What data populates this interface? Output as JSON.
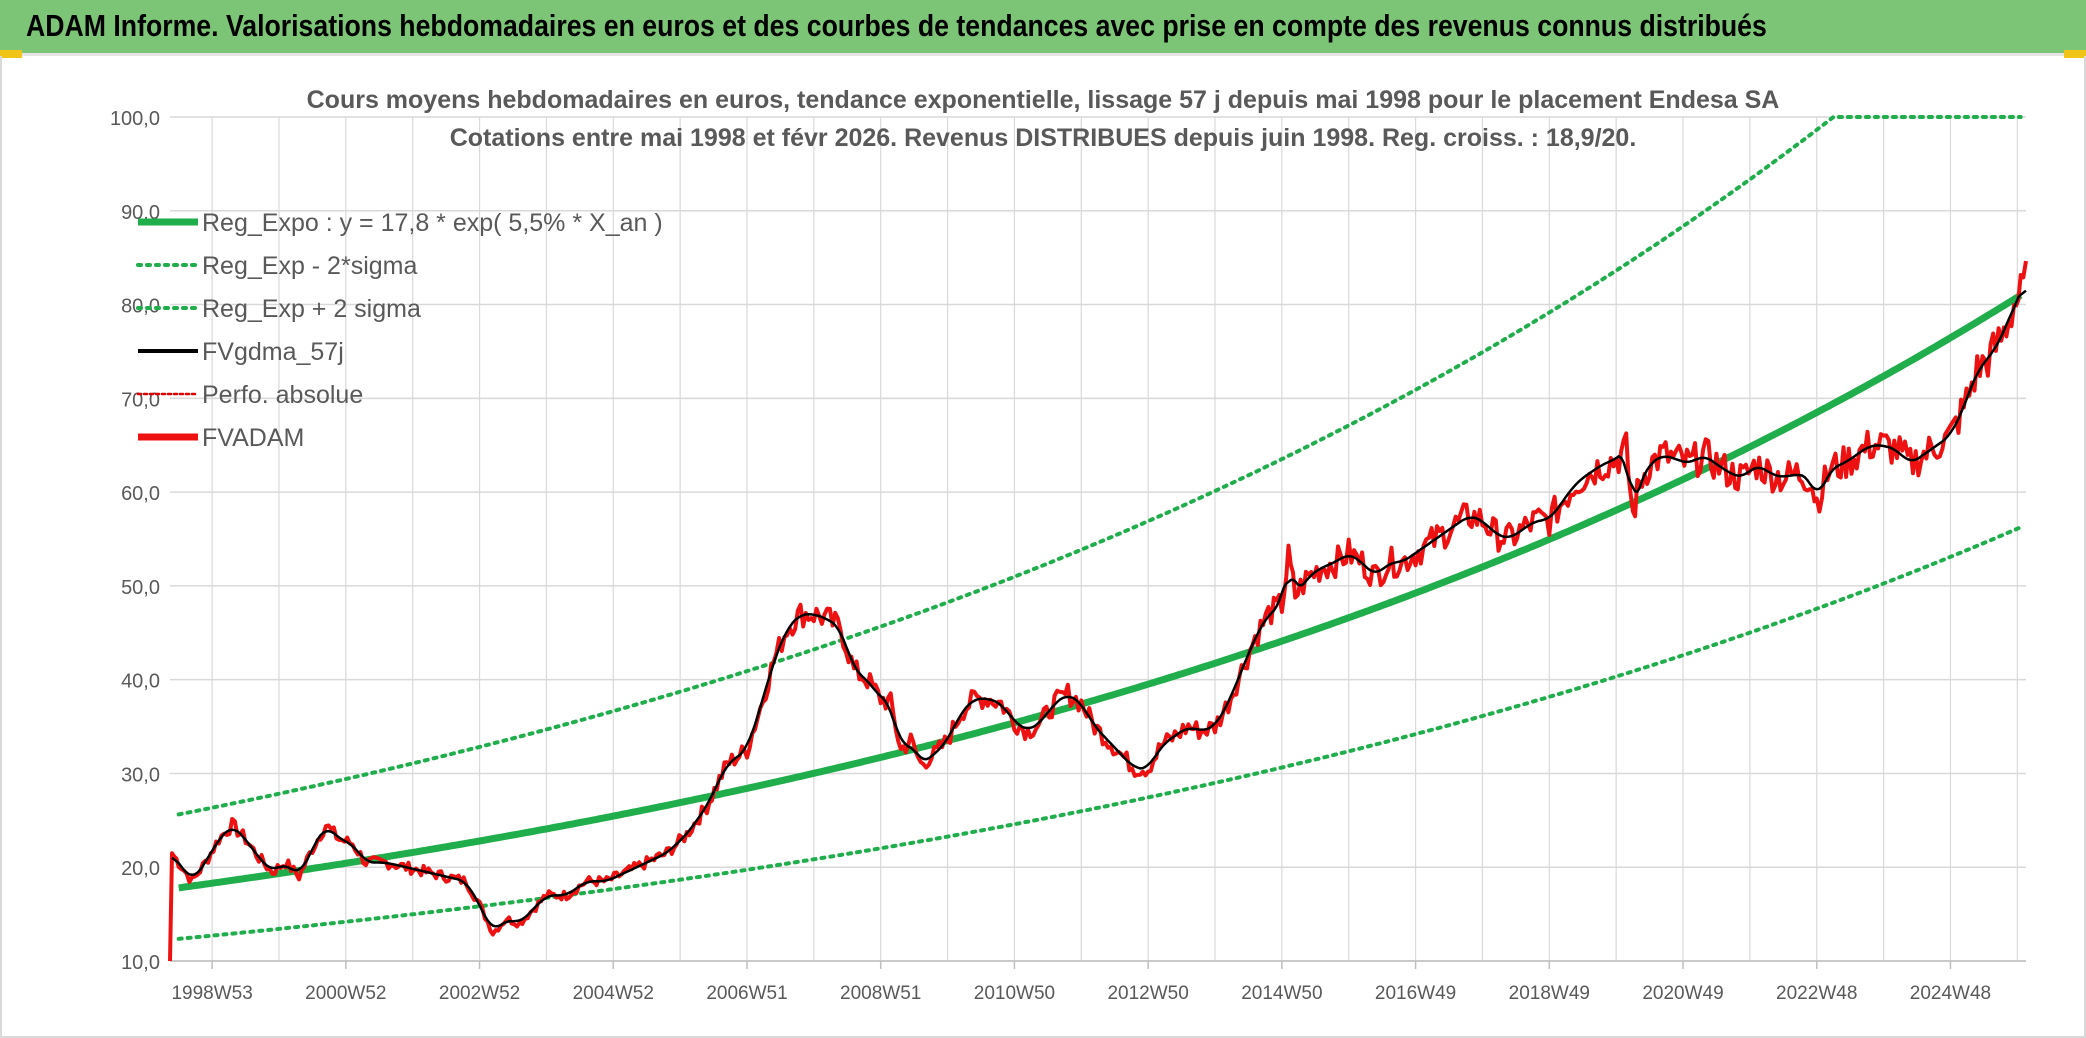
{
  "banner": {
    "title": "ADAM Informe. Valorisations hebdomadaires en euros et des courbes de tendances avec prise en compte des revenus connus distribués"
  },
  "colors": {
    "banner_bg": "#7cc576",
    "trend": "#1fae4b",
    "bands": "#1fae4b",
    "smooth": "#000000",
    "perf": "#e00000",
    "fvadam": "#ee1111",
    "grid": "#d9d9d9",
    "axis_text": "#595959"
  },
  "chart_data": {
    "type": "line",
    "title": "Cours moyens hebdomadaires en euros, tendance exponentielle, lissage 57 j depuis mai 1998 pour le placement Endesa SA",
    "subtitle": "Cotations entre mai 1998 et févr 2026. Revenus DISTRIBUES depuis juin 1998. Reg. croiss. : 18,9/20.",
    "ylim": [
      10,
      100
    ],
    "yticks": [
      "100,0",
      "90,0",
      "80,0",
      "70,0",
      "60,0",
      "50,0",
      "40,0",
      "30,0",
      "20,0",
      "10,0"
    ],
    "xlim": [
      1998.37,
      2026.13
    ],
    "xticks": [
      {
        "label": "1998W53",
        "x": 1999.0
      },
      {
        "label": "2000W52",
        "x": 2001.0
      },
      {
        "label": "2002W52",
        "x": 2003.0
      },
      {
        "label": "2004W52",
        "x": 2005.0
      },
      {
        "label": "2006W51",
        "x": 2007.0
      },
      {
        "label": "2008W51",
        "x": 2009.0
      },
      {
        "label": "2010W50",
        "x": 2011.0
      },
      {
        "label": "2012W50",
        "x": 2013.0
      },
      {
        "label": "2014W50",
        "x": 2015.0
      },
      {
        "label": "2016W49",
        "x": 2017.0
      },
      {
        "label": "2018W49",
        "x": 2019.0
      },
      {
        "label": "2020W49",
        "x": 2021.0
      },
      {
        "label": "2022W48",
        "x": 2023.0
      },
      {
        "label": "2024W48",
        "x": 2025.0
      }
    ],
    "legend_position": "top-left",
    "grid": true,
    "trend": {
      "a": 17.8,
      "rate": 0.055,
      "sigma_factor": 1.44
    },
    "series": [
      {
        "name": "Reg_Expo : y = 17,8 * exp( 5,5% *  X_an )",
        "style": "solid-thick",
        "color": "#1fae4b"
      },
      {
        "name": "Reg_Exp - 2*sigma",
        "style": "dotted",
        "color": "#1fae4b"
      },
      {
        "name": "Reg_Exp + 2 sigma",
        "style": "dotted",
        "color": "#1fae4b"
      },
      {
        "name": "FVgdma_57j",
        "style": "solid",
        "color": "#000000"
      },
      {
        "name": "Perfo. absolue",
        "style": "dotted",
        "color": "#e00000"
      },
      {
        "name": "FVADAM",
        "style": "solid-thick",
        "color": "#ee1111"
      }
    ],
    "fvadam_points": [
      [
        1998.37,
        10.0
      ],
      [
        1998.4,
        21.5
      ],
      [
        1998.5,
        20.5
      ],
      [
        1998.7,
        18.5
      ],
      [
        1998.9,
        20.5
      ],
      [
        1999.1,
        23.0
      ],
      [
        1999.3,
        24.5
      ],
      [
        1999.5,
        23.0
      ],
      [
        1999.7,
        21.0
      ],
      [
        1999.9,
        19.5
      ],
      [
        2000.1,
        20.5
      ],
      [
        2000.3,
        19.0
      ],
      [
        2000.5,
        22.0
      ],
      [
        2000.7,
        24.5
      ],
      [
        2000.9,
        23.0
      ],
      [
        2001.1,
        22.5
      ],
      [
        2001.3,
        20.5
      ],
      [
        2001.6,
        20.5
      ],
      [
        2001.9,
        20.0
      ],
      [
        2002.2,
        19.5
      ],
      [
        2002.5,
        19.0
      ],
      [
        2002.8,
        18.5
      ],
      [
        2003.0,
        16.0
      ],
      [
        2003.2,
        13.0
      ],
      [
        2003.4,
        14.5
      ],
      [
        2003.6,
        14.0
      ],
      [
        2003.8,
        15.5
      ],
      [
        2004.0,
        17.0
      ],
      [
        2004.3,
        17.0
      ],
      [
        2004.6,
        18.5
      ],
      [
        2004.9,
        18.5
      ],
      [
        2005.2,
        19.5
      ],
      [
        2005.5,
        20.5
      ],
      [
        2005.8,
        21.5
      ],
      [
        2006.1,
        23.5
      ],
      [
        2006.4,
        26.5
      ],
      [
        2006.7,
        31.0
      ],
      [
        2007.0,
        32.5
      ],
      [
        2007.2,
        37.0
      ],
      [
        2007.4,
        42.0
      ],
      [
        2007.6,
        45.5
      ],
      [
        2007.8,
        47.0
      ],
      [
        2008.0,
        47.0
      ],
      [
        2008.2,
        46.5
      ],
      [
        2008.4,
        45.5
      ],
      [
        2008.6,
        41.0
      ],
      [
        2008.8,
        40.0
      ],
      [
        2009.0,
        38.0
      ],
      [
        2009.15,
        37.5
      ],
      [
        2009.3,
        32.5
      ],
      [
        2009.45,
        33.5
      ],
      [
        2009.6,
        31.0
      ],
      [
        2009.8,
        32.0
      ],
      [
        2010.0,
        33.5
      ],
      [
        2010.2,
        36.5
      ],
      [
        2010.4,
        38.0
      ],
      [
        2010.6,
        38.0
      ],
      [
        2010.8,
        37.5
      ],
      [
        2011.0,
        35.5
      ],
      [
        2011.2,
        34.5
      ],
      [
        2011.4,
        35.5
      ],
      [
        2011.6,
        37.5
      ],
      [
        2011.8,
        38.5
      ],
      [
        2012.0,
        37.5
      ],
      [
        2012.2,
        35.0
      ],
      [
        2012.4,
        33.5
      ],
      [
        2012.6,
        32.0
      ],
      [
        2012.8,
        30.5
      ],
      [
        2013.0,
        30.5
      ],
      [
        2013.2,
        33.0
      ],
      [
        2013.4,
        34.0
      ],
      [
        2013.6,
        35.0
      ],
      [
        2013.8,
        34.5
      ],
      [
        2014.0,
        35.0
      ],
      [
        2014.2,
        37.5
      ],
      [
        2014.4,
        41.0
      ],
      [
        2014.6,
        44.5
      ],
      [
        2014.8,
        47.0
      ],
      [
        2015.0,
        48.0
      ],
      [
        2015.1,
        53.0
      ],
      [
        2015.2,
        49.0
      ],
      [
        2015.4,
        51.0
      ],
      [
        2015.6,
        52.0
      ],
      [
        2015.8,
        52.5
      ],
      [
        2016.0,
        53.5
      ],
      [
        2016.2,
        52.5
      ],
      [
        2016.4,
        51.0
      ],
      [
        2016.6,
        52.5
      ],
      [
        2016.8,
        52.5
      ],
      [
        2017.0,
        53.5
      ],
      [
        2017.2,
        54.5
      ],
      [
        2017.4,
        55.5
      ],
      [
        2017.6,
        56.5
      ],
      [
        2017.8,
        57.5
      ],
      [
        2018.0,
        57.0
      ],
      [
        2018.2,
        55.5
      ],
      [
        2018.4,
        55.0
      ],
      [
        2018.6,
        56.0
      ],
      [
        2018.8,
        57.0
      ],
      [
        2019.0,
        57.0
      ],
      [
        2019.2,
        59.0
      ],
      [
        2019.4,
        61.0
      ],
      [
        2019.6,
        62.0
      ],
      [
        2019.8,
        63.0
      ],
      [
        2020.0,
        63.5
      ],
      [
        2020.15,
        64.5
      ],
      [
        2020.25,
        57.5
      ],
      [
        2020.35,
        61.0
      ],
      [
        2020.5,
        63.0
      ],
      [
        2020.7,
        64.0
      ],
      [
        2020.9,
        63.5
      ],
      [
        2021.1,
        63.0
      ],
      [
        2021.3,
        64.0
      ],
      [
        2021.5,
        63.0
      ],
      [
        2021.7,
        62.0
      ],
      [
        2021.9,
        61.5
      ],
      [
        2022.1,
        63.0
      ],
      [
        2022.3,
        62.0
      ],
      [
        2022.5,
        61.5
      ],
      [
        2022.7,
        62.0
      ],
      [
        2022.9,
        61.5
      ],
      [
        2023.0,
        59.0
      ],
      [
        2023.2,
        62.5
      ],
      [
        2023.4,
        63.0
      ],
      [
        2023.6,
        64.0
      ],
      [
        2023.8,
        65.0
      ],
      [
        2024.0,
        65.0
      ],
      [
        2024.2,
        64.5
      ],
      [
        2024.4,
        63.0
      ],
      [
        2024.6,
        64.0
      ],
      [
        2024.8,
        65.0
      ],
      [
        2025.0,
        66.0
      ],
      [
        2025.2,
        69.0
      ],
      [
        2025.4,
        73.0
      ],
      [
        2025.6,
        74.5
      ],
      [
        2025.8,
        77.0
      ],
      [
        2025.95,
        80.0
      ],
      [
        2026.05,
        81.0
      ],
      [
        2026.13,
        82.5
      ]
    ]
  }
}
